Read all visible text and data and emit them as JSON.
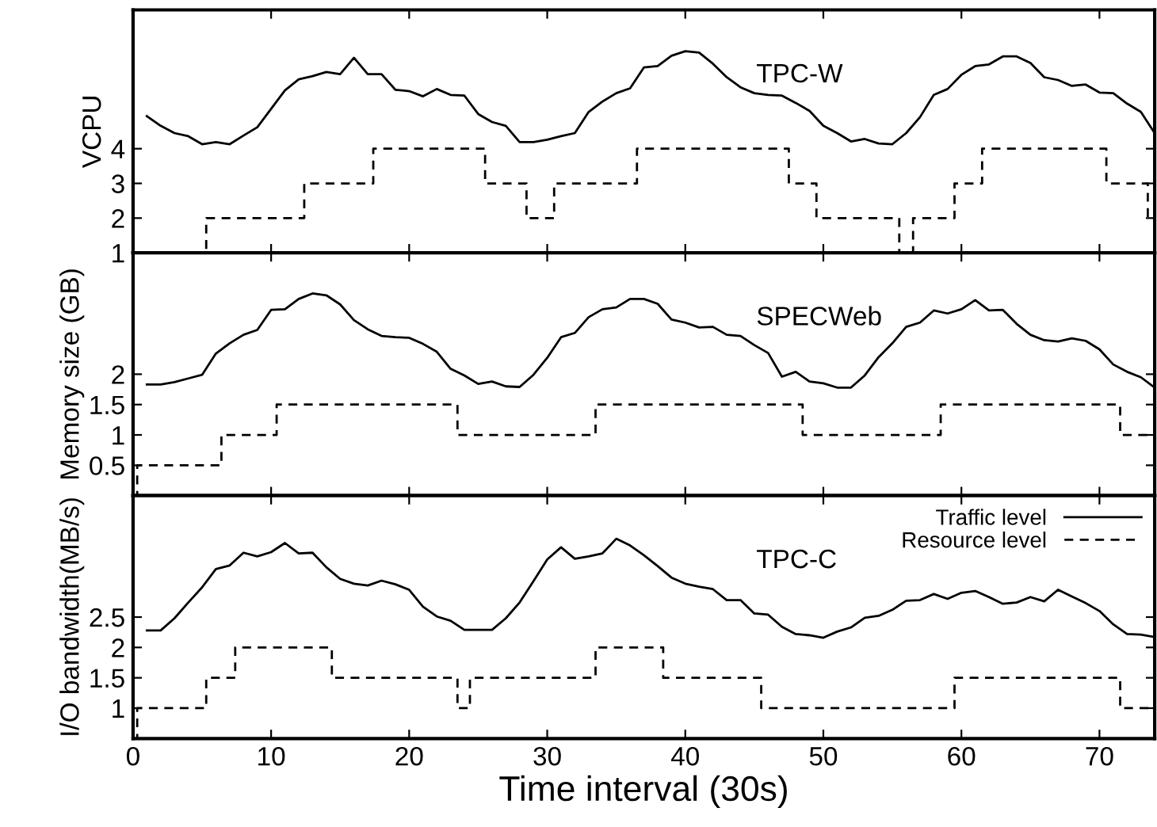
{
  "chart_data": [
    {
      "type": "line",
      "ylabel": "VCPU",
      "annotations": [
        "TPC-W"
      ],
      "xlim": [
        0,
        74
      ],
      "xticks": [
        0,
        10,
        20,
        30,
        40,
        50,
        60,
        70
      ],
      "ylim": [
        1,
        8
      ],
      "yticks": [
        1,
        2,
        3,
        4
      ],
      "tick_labels": "y",
      "grid": false,
      "legend": false,
      "series": [
        {
          "color": "#000000",
          "line_style": "solid",
          "x": [
            1,
            2,
            3,
            4,
            5,
            6,
            7,
            8,
            9,
            10,
            11,
            12,
            13,
            14,
            15,
            16,
            17,
            18,
            19,
            20,
            21,
            22,
            23,
            24,
            25,
            26,
            27,
            28,
            29,
            30,
            31,
            32,
            33,
            34,
            35,
            36,
            37,
            38,
            39,
            40,
            41,
            42,
            43,
            44,
            45,
            46,
            47,
            48,
            49,
            50,
            51,
            52,
            53,
            54,
            55,
            56,
            57,
            58,
            59,
            60,
            61,
            62,
            63,
            64,
            65,
            66,
            67,
            68,
            69,
            70,
            71,
            72,
            73,
            74
          ],
          "values": [
            4.94,
            4.66,
            4.45,
            4.36,
            4.13,
            4.19,
            4.13,
            4.38,
            4.62,
            5.15,
            5.68,
            6.0,
            6.09,
            6.21,
            6.15,
            6.62,
            6.15,
            6.15,
            5.7,
            5.66,
            5.51,
            5.72,
            5.55,
            5.53,
            5.0,
            4.77,
            4.66,
            4.19,
            4.19,
            4.26,
            4.36,
            4.45,
            5.06,
            5.36,
            5.6,
            5.74,
            6.34,
            6.38,
            6.68,
            6.81,
            6.77,
            6.45,
            6.06,
            5.77,
            5.6,
            5.55,
            5.53,
            5.32,
            5.09,
            4.66,
            4.45,
            4.21,
            4.28,
            4.15,
            4.13,
            4.45,
            4.91,
            5.55,
            5.72,
            6.13,
            6.38,
            6.43,
            6.66,
            6.66,
            6.47,
            6.06,
            5.98,
            5.81,
            5.85,
            5.62,
            5.6,
            5.3,
            5.06,
            4.45
          ]
        },
        {
          "type": "step",
          "color": "#000000",
          "line_style": "dashed",
          "x": [
            0,
            5.3,
            12.4,
            17.4,
            25.5,
            28.5,
            30.5,
            36.5,
            47.5,
            49.5,
            55.5,
            56.5,
            59.5,
            61.5,
            70.5,
            73.5,
            74
          ],
          "values": [
            1,
            2,
            3,
            4,
            3,
            2,
            3,
            4,
            3,
            2,
            1,
            2,
            3,
            4,
            3,
            2,
            2
          ]
        }
      ]
    },
    {
      "type": "line",
      "ylabel": "Memory size (GB)",
      "annotations": [
        "SPECWeb"
      ],
      "xlim": [
        0,
        74
      ],
      "xticks": [
        0,
        10,
        20,
        30,
        40,
        50,
        60,
        70
      ],
      "ylim": [
        0,
        4
      ],
      "yticks": [
        0.5,
        1,
        1.5,
        2
      ],
      "tick_labels": "y",
      "grid": false,
      "legend": false,
      "series": [
        {
          "color": "#000000",
          "line_style": "solid",
          "x": [
            1,
            2,
            3,
            4,
            5,
            6,
            7,
            8,
            9,
            10,
            11,
            12,
            13,
            14,
            15,
            16,
            17,
            18,
            19,
            20,
            21,
            22,
            23,
            24,
            25,
            26,
            27,
            28,
            29,
            30,
            31,
            32,
            33,
            34,
            35,
            36,
            37,
            38,
            39,
            40,
            41,
            42,
            43,
            44,
            45,
            46,
            47,
            48,
            49,
            50,
            51,
            52,
            53,
            54,
            55,
            56,
            57,
            58,
            59,
            60,
            61,
            62,
            63,
            64,
            65,
            66,
            67,
            68,
            69,
            70,
            71,
            72,
            73,
            74
          ],
          "values": [
            1.83,
            1.83,
            1.87,
            1.93,
            1.99,
            2.34,
            2.51,
            2.65,
            2.73,
            3.06,
            3.07,
            3.24,
            3.33,
            3.3,
            3.15,
            2.89,
            2.74,
            2.63,
            2.61,
            2.6,
            2.5,
            2.37,
            2.09,
            1.98,
            1.84,
            1.88,
            1.8,
            1.79,
            1.99,
            2.27,
            2.61,
            2.68,
            2.94,
            3.07,
            3.1,
            3.24,
            3.24,
            3.16,
            2.9,
            2.85,
            2.77,
            2.78,
            2.65,
            2.63,
            2.48,
            2.35,
            1.96,
            2.04,
            1.88,
            1.85,
            1.78,
            1.78,
            1.98,
            2.28,
            2.51,
            2.78,
            2.85,
            3.05,
            3.0,
            3.07,
            3.22,
            3.05,
            3.06,
            2.83,
            2.65,
            2.56,
            2.54,
            2.59,
            2.55,
            2.41,
            2.16,
            2.04,
            1.95,
            1.78
          ]
        },
        {
          "type": "step",
          "color": "#000000",
          "line_style": "dashed",
          "x": [
            0,
            0.3,
            6.4,
            10.4,
            23.5,
            33.5,
            48.5,
            58.5,
            71.5,
            74
          ],
          "values": [
            0,
            0.5,
            1,
            1.5,
            1,
            1.5,
            1,
            1.5,
            1,
            1
          ]
        }
      ]
    },
    {
      "type": "line",
      "ylabel": "I/O bandwidth(MB/s)",
      "xlabel": "Time interval (30s)",
      "annotations": [
        "TPC-C"
      ],
      "xlim": [
        0,
        74
      ],
      "xticks": [
        0,
        10,
        20,
        30,
        40,
        50,
        60,
        70
      ],
      "ylim": [
        0.5,
        4.5
      ],
      "yticks": [
        1,
        1.5,
        2,
        2.5
      ],
      "grid": false,
      "legend": "top right",
      "series": [
        {
          "name": "Traffic level",
          "color": "#000000",
          "line_style": "solid",
          "x": [
            1,
            2,
            3,
            4,
            5,
            6,
            7,
            8,
            9,
            10,
            11,
            12,
            13,
            14,
            15,
            16,
            17,
            18,
            19,
            20,
            21,
            22,
            23,
            24,
            25,
            26,
            27,
            28,
            29,
            30,
            31,
            32,
            33,
            34,
            35,
            36,
            37,
            38,
            39,
            40,
            41,
            42,
            43,
            44,
            45,
            46,
            47,
            48,
            49,
            50,
            51,
            52,
            53,
            54,
            55,
            56,
            57,
            58,
            59,
            60,
            61,
            62,
            63,
            64,
            65,
            66,
            67,
            68,
            69,
            70,
            71,
            72,
            73,
            74
          ],
          "values": [
            2.28,
            2.28,
            2.48,
            2.74,
            2.99,
            3.29,
            3.35,
            3.56,
            3.5,
            3.57,
            3.72,
            3.55,
            3.56,
            3.32,
            3.13,
            3.05,
            3.02,
            3.1,
            3.04,
            2.95,
            2.67,
            2.51,
            2.44,
            2.29,
            2.29,
            2.29,
            2.48,
            2.74,
            3.09,
            3.45,
            3.65,
            3.46,
            3.5,
            3.55,
            3.79,
            3.68,
            3.52,
            3.34,
            3.15,
            3.05,
            3.0,
            2.96,
            2.78,
            2.78,
            2.56,
            2.54,
            2.34,
            2.22,
            2.2,
            2.16,
            2.26,
            2.33,
            2.49,
            2.52,
            2.62,
            2.77,
            2.78,
            2.88,
            2.8,
            2.9,
            2.93,
            2.83,
            2.72,
            2.74,
            2.83,
            2.76,
            2.95,
            2.84,
            2.73,
            2.6,
            2.38,
            2.22,
            2.21,
            2.17
          ]
        },
        {
          "type": "step",
          "name": "Resource level",
          "color": "#000000",
          "line_style": "dashed",
          "x": [
            0,
            0.3,
            5.3,
            7.4,
            14.4,
            23.5,
            24.4,
            33.5,
            38.4,
            45.5,
            59.5,
            71.5,
            74
          ],
          "values": [
            0.5,
            1,
            1.5,
            2,
            1.5,
            1,
            1.5,
            2,
            1.5,
            1,
            1.5,
            1,
            1
          ]
        }
      ]
    }
  ]
}
